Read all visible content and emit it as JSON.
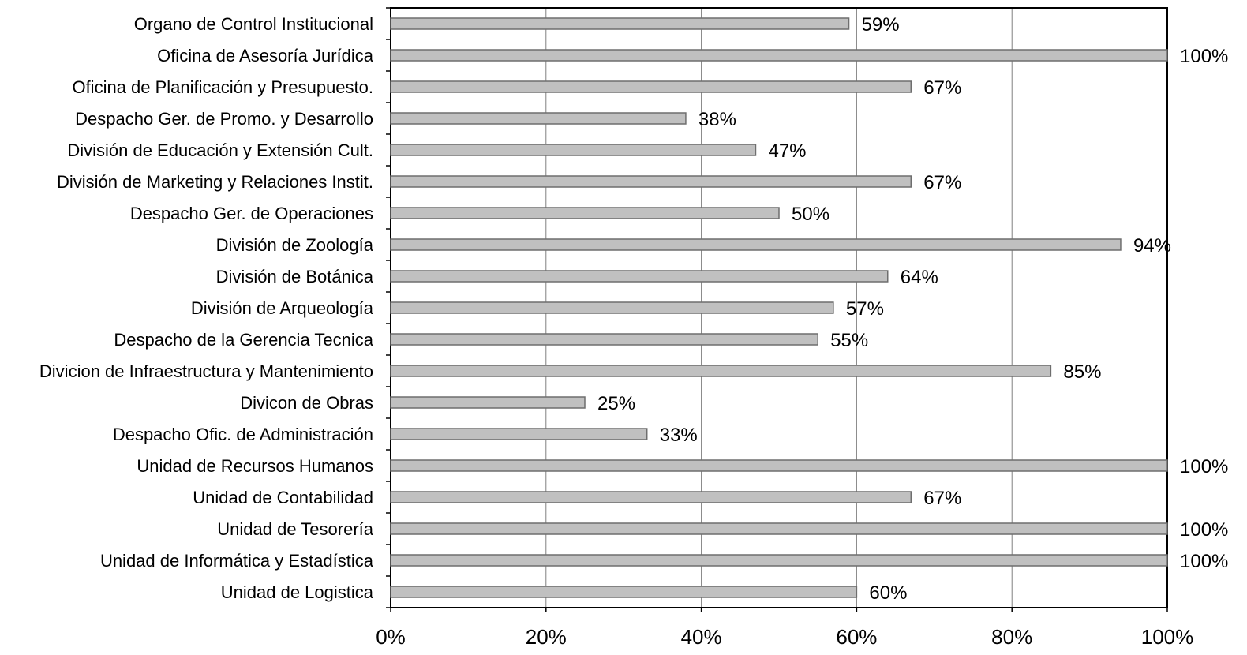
{
  "chart_data": {
    "type": "bar",
    "orientation": "horizontal",
    "categories": [
      "Organo de Control Institucional",
      "Oficina de Asesoría Jurídica",
      "Oficina de Planificación y Presupuesto.",
      "Despacho Ger. de Promo. y Desarrollo",
      "División de Educación y Extensión Cult.",
      "División de Marketing y Relaciones Instit.",
      "Despacho Ger. de Operaciones",
      "División de Zoología",
      "División de Botánica",
      "División de Arqueología",
      "Despacho de la Gerencia Tecnica",
      "Divicion de Infraestructura y Mantenimiento",
      "Divicon de Obras",
      "Despacho Ofic. de Administración",
      "Unidad de Recursos Humanos",
      "Unidad de Contabilidad",
      "Unidad de Tesorería",
      "Unidad de Informática y Estadística",
      "Unidad de Logistica"
    ],
    "values": [
      59,
      100,
      67,
      38,
      47,
      67,
      50,
      94,
      64,
      57,
      55,
      85,
      25,
      33,
      100,
      67,
      100,
      100,
      60
    ],
    "value_labels": [
      "59%",
      "100%",
      "67%",
      "38%",
      "47%",
      "67%",
      "50%",
      "94%",
      "64%",
      "57%",
      "55%",
      "85%",
      "25%",
      "33%",
      "100%",
      "67%",
      "100%",
      "100%",
      "60%"
    ],
    "xlim": [
      0,
      100
    ],
    "xticks": [
      0,
      20,
      40,
      60,
      80,
      100
    ],
    "xtick_labels": [
      "0%",
      "20%",
      "40%",
      "60%",
      "80%",
      "100%"
    ],
    "grid": "vertical",
    "legend": "none",
    "colors": {
      "bar_fill": "#c0c0c0",
      "bar_stroke": "#6e6e6e",
      "grid": "#808080",
      "axis": "#000000"
    }
  }
}
